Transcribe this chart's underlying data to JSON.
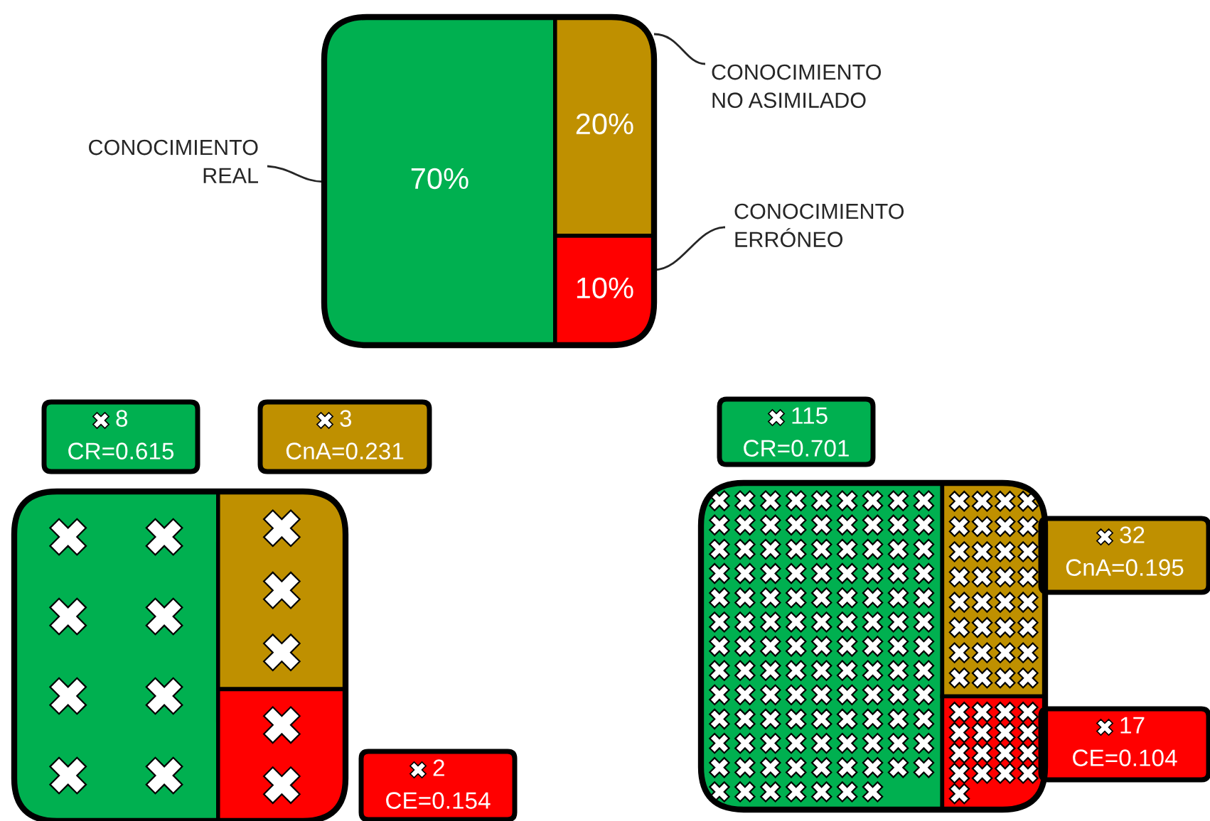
{
  "chart_data": [
    {
      "type": "other",
      "categories": [
        "CONOCIMIENTO\nREAL",
        "CONOCIMIENTO\nNO ASIMILADO",
        "CONOCIMIENTO\nERRÓNEO"
      ],
      "values": [
        70,
        20,
        10
      ],
      "value_labels": [
        "70%",
        "20%",
        "10%"
      ],
      "colors": [
        "#00b050",
        "#bf9000",
        "#ff0000"
      ]
    },
    {
      "type": "other",
      "categories": [
        null,
        null,
        null
      ],
      "values": [
        8,
        3,
        2
      ],
      "value_labels": [
        "8",
        "3",
        "2"
      ],
      "annotations": [
        "CR=0.615",
        "CnA=0.231",
        "CE=0.154"
      ],
      "colors": [
        "#00b050",
        "#bf9000",
        "#ff0000"
      ]
    },
    {
      "type": "other",
      "categories": [
        null,
        null,
        null
      ],
      "values": [
        115,
        32,
        17
      ],
      "value_labels": [
        "115",
        "32",
        "17"
      ],
      "annotations": [
        "CR=0.701",
        "CnA=0.195",
        "CE=0.104"
      ],
      "colors": [
        "#00b050",
        "#bf9000",
        "#ff0000"
      ]
    }
  ]
}
